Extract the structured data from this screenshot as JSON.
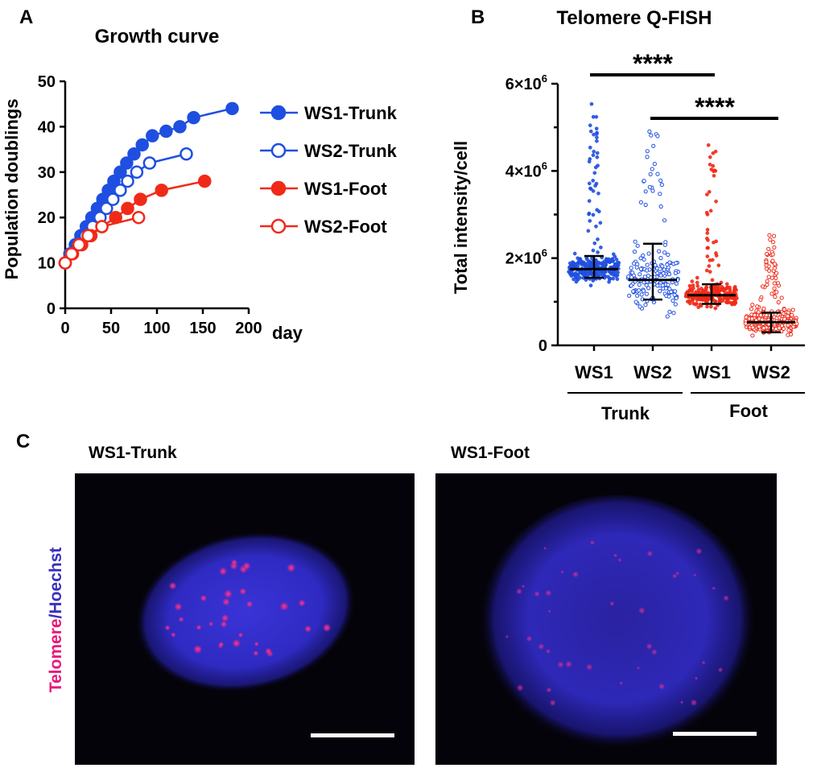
{
  "panels": {
    "a": "A",
    "b": "B",
    "c": "C"
  },
  "growth": {
    "title": "Growth curve",
    "xlabel": "day",
    "ylabel": "Population doublings",
    "xticks": [
      "0",
      "50",
      "100",
      "150",
      "200"
    ],
    "yticks": [
      "0",
      "10",
      "20",
      "30",
      "40",
      "50"
    ]
  },
  "qfish": {
    "title": "Telomere Q-FISH",
    "ylabel": "Total intensity/cell",
    "yticks": [
      {
        "base": "0",
        "exp": ""
      },
      {
        "base": "2×10",
        "exp": "6"
      },
      {
        "base": "4×10",
        "exp": "6"
      },
      {
        "base": "6×10",
        "exp": "6"
      }
    ],
    "groups": [
      "WS1",
      "WS2",
      "WS1",
      "WS2"
    ],
    "supergroups": [
      "Trunk",
      "Foot"
    ],
    "sig1": "****",
    "sig2": "****"
  },
  "micro": {
    "label_left": "WS1-Trunk",
    "label_right": "WS1-Foot",
    "side_label_a": "Telomere",
    "side_label_sep": "/",
    "side_label_b": "Hoechst"
  },
  "colors": {
    "blue": "#1f4fe0",
    "red": "#f02a18",
    "sidelabel_pink": "#e8187a",
    "sidelabel_blue": "#3a2fc0"
  },
  "chart_data": [
    {
      "type": "line",
      "title": "Growth curve",
      "xlabel": "day",
      "ylabel": "Population doublings",
      "xlim": [
        0,
        200
      ],
      "ylim": [
        0,
        50
      ],
      "legend": "right",
      "series": [
        {
          "name": "WS1-Trunk",
          "color": "#1f4fe0",
          "filled": true,
          "x": [
            0,
            5,
            11,
            17,
            23,
            29,
            35,
            41,
            47,
            53,
            60,
            67,
            75,
            84,
            95,
            110,
            125,
            140,
            182
          ],
          "y": [
            10,
            12,
            14,
            16,
            18,
            20,
            22,
            24,
            26,
            28,
            30,
            32,
            34,
            36,
            38,
            39,
            40,
            42,
            44
          ]
        },
        {
          "name": "WS2-Trunk",
          "color": "#1f4fe0",
          "filled": false,
          "x": [
            0,
            6,
            14,
            22,
            30,
            38,
            45,
            52,
            60,
            68,
            78,
            92,
            132
          ],
          "y": [
            10,
            12,
            14,
            16,
            18,
            20,
            22,
            24,
            26,
            28,
            30,
            32,
            34
          ]
        },
        {
          "name": "WS1-Foot",
          "color": "#f02a18",
          "filled": true,
          "x": [
            0,
            8,
            18,
            28,
            40,
            55,
            68,
            82,
            105,
            152
          ],
          "y": [
            10,
            12,
            14,
            16,
            18,
            20,
            22,
            24,
            26,
            28
          ]
        },
        {
          "name": "WS2-Foot",
          "color": "#f02a18",
          "filled": false,
          "x": [
            0,
            7,
            15,
            25,
            40,
            80
          ],
          "y": [
            10,
            12,
            14,
            16,
            18,
            20
          ]
        }
      ]
    },
    {
      "type": "scatter",
      "title": "Telomere Q-FISH",
      "ylabel": "Total intensity/cell",
      "ylim": [
        0,
        6000000
      ],
      "categories": [
        "WS1",
        "WS2",
        "WS1",
        "WS2"
      ],
      "supergroups": [
        {
          "name": "Trunk",
          "categories": [
            0,
            1
          ]
        },
        {
          "name": "Foot",
          "categories": [
            2,
            3
          ]
        }
      ],
      "series": [
        {
          "group": "WS1 Trunk",
          "color": "#1f4fe0",
          "filled": true,
          "median": 1750000,
          "q1": 1550000,
          "q3": 2050000,
          "min": 600000,
          "max": 5600000,
          "n": 260
        },
        {
          "group": "WS2 Trunk",
          "color": "#1f4fe0",
          "filled": false,
          "median": 1500000,
          "q1": 1050000,
          "q3": 2330000,
          "min": 250000,
          "max": 5050000,
          "n": 180
        },
        {
          "group": "WS1 Foot",
          "color": "#f02a18",
          "filled": true,
          "median": 1150000,
          "q1": 950000,
          "q3": 1400000,
          "min": 300000,
          "max": 4600000,
          "n": 260
        },
        {
          "group": "WS2 Foot",
          "color": "#f02a18",
          "filled": false,
          "median": 530000,
          "q1": 300000,
          "q3": 750000,
          "min": 0,
          "max": 2550000,
          "n": 300
        }
      ],
      "annotations": [
        {
          "text": "****",
          "from": 0,
          "to": 2
        },
        {
          "text": "****",
          "from": 1,
          "to": 3
        }
      ]
    }
  ]
}
